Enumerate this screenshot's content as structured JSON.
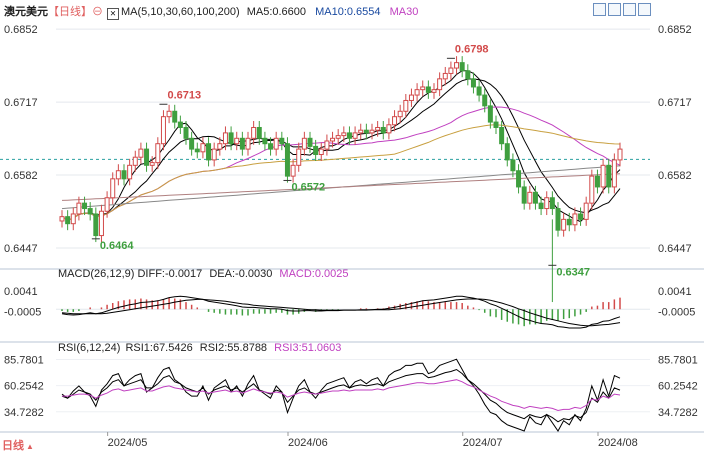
{
  "header": {
    "symbol": "澳元美元",
    "period_tag": "【日线】",
    "ma_label": "MA(5,10,30,60,100,200)",
    "ma5_label": "MA5:0.6600",
    "ma10_label": "MA10:0.6554",
    "ma30_label": "MA30"
  },
  "macd_header": {
    "params": "MACD(26,12,9)",
    "diff": "DIFF:-0.0017",
    "dea": "DEA:-0.0030",
    "macd": "MACD:0.0025"
  },
  "rsi_header": {
    "params": "RSI(6,12,24)",
    "rsi1": "RSI1:67.5426",
    "rsi2": "RSI2:55.8788",
    "rsi3": "RSI3:51.0603"
  },
  "footer": {
    "period_button": "日线",
    "dates": [
      "2024/05",
      "2024/06",
      "2024/07",
      "2024/08"
    ]
  },
  "colors": {
    "up": "#d24a4a",
    "down": "#3f9f3f",
    "ma5": "#000000",
    "ma10": "#000000",
    "ma30": "#c040c0",
    "ma60": "#c8a040",
    "ma100": "#888888",
    "ma200": "#b08080",
    "rsi1": "#000000",
    "rsi2": "#000000",
    "rsi3": "#c040c0",
    "label_red": "#d24a4a",
    "label_green": "#3f9f3f",
    "header_blue": "#1a4aa0"
  },
  "chart_data": [
    {
      "type": "candlestick",
      "title": "澳元美元",
      "ylim": [
        0.641,
        0.688
      ],
      "y_ticks": [
        "0.6852",
        "0.6717",
        "0.6582",
        "0.6447"
      ],
      "reference_line": 0.6611,
      "annotations": [
        {
          "text": "0.6713",
          "value": 0.6713,
          "kind": "high"
        },
        {
          "text": "0.6464",
          "value": 0.6464,
          "kind": "low"
        },
        {
          "text": "0.6572",
          "value": 0.6572,
          "kind": "low"
        },
        {
          "text": "0.6798",
          "value": 0.6798,
          "kind": "high"
        },
        {
          "text": "0.6347",
          "value": 0.6347,
          "kind": "low"
        }
      ],
      "close": [
        0.6505,
        0.6492,
        0.651,
        0.653,
        0.652,
        0.651,
        0.647,
        0.6515,
        0.654,
        0.6575,
        0.659,
        0.6575,
        0.66,
        0.6615,
        0.663,
        0.66,
        0.6605,
        0.664,
        0.669,
        0.67,
        0.668,
        0.667,
        0.665,
        0.663,
        0.6625,
        0.664,
        0.661,
        0.663,
        0.664,
        0.666,
        0.664,
        0.665,
        0.663,
        0.665,
        0.667,
        0.665,
        0.664,
        0.663,
        0.665,
        0.664,
        0.658,
        0.66,
        0.663,
        0.665,
        0.6635,
        0.662,
        0.663,
        0.6645,
        0.665,
        0.6655,
        0.666,
        0.665,
        0.666,
        0.6665,
        0.666,
        0.6665,
        0.667,
        0.666,
        0.6675,
        0.669,
        0.67,
        0.672,
        0.673,
        0.674,
        0.6745,
        0.6735,
        0.674,
        0.676,
        0.677,
        0.678,
        0.679,
        0.6775,
        0.676,
        0.6745,
        0.673,
        0.671,
        0.668,
        0.667,
        0.664,
        0.661,
        0.659,
        0.656,
        0.653,
        0.655,
        0.653,
        0.652,
        0.654,
        0.652,
        0.648,
        0.65,
        0.649,
        0.651,
        0.65,
        0.653,
        0.658,
        0.656,
        0.66,
        0.656,
        0.661,
        0.663
      ],
      "ma_values": {
        "MA5": 0.66,
        "MA10": 0.6554
      }
    },
    {
      "type": "macd",
      "y_ticks": [
        "0.0041",
        "-0.0005"
      ],
      "ylim": [
        -0.006,
        0.007
      ],
      "diff": [
        -0.001,
        -0.0012,
        -0.0013,
        -0.0012,
        -0.001,
        -0.0008,
        -0.001,
        -0.0008,
        -0.0004,
        0.0,
        0.0004,
        0.0007,
        0.001,
        0.0012,
        0.0015,
        0.0016,
        0.0017,
        0.0019,
        0.0022,
        0.0026,
        0.0028,
        0.0029,
        0.0028,
        0.0026,
        0.0024,
        0.0022,
        0.0018,
        0.0016,
        0.0014,
        0.0012,
        0.001,
        0.0008,
        0.0005,
        0.0004,
        0.0004,
        0.0003,
        0.0002,
        0.0001,
        0.0001,
        0.0,
        -0.0003,
        -0.0004,
        -0.0004,
        -0.0003,
        -0.0003,
        -0.0004,
        -0.0004,
        -0.0003,
        -0.0003,
        -0.0003,
        -0.0002,
        -0.0002,
        -0.0002,
        -0.0001,
        -0.0001,
        -0.0001,
        0.0,
        0.0,
        0.0002,
        0.0004,
        0.0007,
        0.001,
        0.0013,
        0.0016,
        0.0019,
        0.002,
        0.0021,
        0.0023,
        0.0025,
        0.0027,
        0.0029,
        0.0029,
        0.0027,
        0.0025,
        0.0022,
        0.0018,
        0.0012,
        0.0008,
        0.0002,
        -0.0004,
        -0.001,
        -0.0016,
        -0.0022,
        -0.0025,
        -0.0029,
        -0.0032,
        -0.0033,
        -0.0035,
        -0.0039,
        -0.004,
        -0.0042,
        -0.0042,
        -0.0042,
        -0.004,
        -0.0034,
        -0.0032,
        -0.0027,
        -0.0026,
        -0.0021,
        -0.0017
      ],
      "dea": [
        -0.0008,
        -0.0009,
        -0.001,
        -0.001,
        -0.001,
        -0.001,
        -0.001,
        -0.001,
        -0.0009,
        -0.0007,
        -0.0005,
        -0.0003,
        -0.0001,
        0.0001,
        0.0003,
        0.0005,
        0.0007,
        0.0009,
        0.0011,
        0.0013,
        0.0016,
        0.0018,
        0.002,
        0.0021,
        0.0022,
        0.0022,
        0.0021,
        0.002,
        0.0019,
        0.0018,
        0.0016,
        0.0014,
        0.0012,
        0.0011,
        0.0009,
        0.0008,
        0.0007,
        0.0006,
        0.0005,
        0.0004,
        0.0003,
        0.0002,
        0.0001,
        0.0,
        -0.0001,
        -0.0001,
        -0.0002,
        -0.0002,
        -0.0002,
        -0.0002,
        -0.0002,
        -0.0002,
        -0.0002,
        -0.0002,
        -0.0002,
        -0.0001,
        -0.0001,
        -0.0001,
        -0.0001,
        0.0,
        0.0001,
        0.0003,
        0.0005,
        0.0007,
        0.0009,
        0.0011,
        0.0013,
        0.0015,
        0.0017,
        0.0019,
        0.0021,
        0.0022,
        0.0023,
        0.0023,
        0.0023,
        0.0022,
        0.002,
        0.0017,
        0.0014,
        0.001,
        0.0006,
        0.0001,
        -0.0003,
        -0.0008,
        -0.0012,
        -0.0016,
        -0.002,
        -0.0023,
        -0.0026,
        -0.0029,
        -0.0032,
        -0.0034,
        -0.0036,
        -0.0037,
        -0.0037,
        -0.0036,
        -0.0035,
        -0.0034,
        -0.0032,
        -0.003
      ]
    },
    {
      "type": "line",
      "title": "RSI",
      "y_ticks": [
        "85.7801",
        "60.2542",
        "34.7282"
      ],
      "ylim": [
        15,
        95
      ],
      "series": [
        {
          "name": "RSI1",
          "values": [
            52,
            48,
            55,
            60,
            54,
            50,
            40,
            56,
            62,
            70,
            72,
            60,
            66,
            70,
            72,
            54,
            58,
            68,
            76,
            78,
            66,
            62,
            54,
            50,
            50,
            60,
            46,
            58,
            62,
            66,
            54,
            60,
            50,
            62,
            70,
            56,
            52,
            48,
            60,
            54,
            34,
            48,
            60,
            66,
            54,
            48,
            56,
            62,
            64,
            66,
            68,
            58,
            64,
            66,
            62,
            66,
            68,
            60,
            70,
            74,
            76,
            80,
            80,
            82,
            82,
            72,
            74,
            80,
            82,
            84,
            86,
            76,
            66,
            60,
            52,
            42,
            34,
            32,
            26,
            22,
            20,
            18,
            16,
            30,
            24,
            22,
            32,
            24,
            16,
            26,
            22,
            32,
            26,
            38,
            60,
            46,
            66,
            50,
            70,
            67.5
          ]
        },
        {
          "name": "RSI2",
          "values": [
            50,
            48,
            52,
            56,
            54,
            52,
            46,
            54,
            58,
            64,
            66,
            60,
            62,
            64,
            66,
            58,
            58,
            62,
            68,
            70,
            64,
            62,
            58,
            56,
            54,
            58,
            52,
            56,
            58,
            60,
            56,
            58,
            54,
            58,
            62,
            56,
            54,
            52,
            56,
            54,
            44,
            50,
            56,
            58,
            54,
            52,
            54,
            56,
            58,
            60,
            61,
            58,
            60,
            61,
            60,
            61,
            62,
            60,
            64,
            66,
            68,
            70,
            71,
            72,
            72,
            68,
            69,
            71,
            73,
            74,
            76,
            72,
            66,
            62,
            57,
            52,
            46,
            43,
            38,
            34,
            32,
            30,
            28,
            32,
            30,
            29,
            32,
            29,
            25,
            28,
            27,
            31,
            29,
            34,
            48,
            44,
            54,
            48,
            58,
            55.9
          ]
        },
        {
          "name": "RSI3",
          "values": [
            50,
            50,
            51,
            52,
            52,
            51,
            48,
            51,
            53,
            56,
            57,
            55,
            56,
            57,
            58,
            55,
            55,
            57,
            59,
            60,
            58,
            57,
            56,
            55,
            54,
            55,
            53,
            54,
            55,
            56,
            54,
            55,
            53,
            55,
            57,
            55,
            54,
            53,
            54,
            53,
            49,
            51,
            53,
            54,
            53,
            52,
            53,
            54,
            55,
            55,
            56,
            55,
            56,
            56,
            56,
            56,
            57,
            56,
            58,
            59,
            60,
            61,
            62,
            63,
            63,
            62,
            62,
            63,
            64,
            65,
            66,
            64,
            61,
            59,
            56,
            53,
            50,
            48,
            45,
            43,
            41,
            40,
            38,
            40,
            39,
            38,
            39,
            38,
            36,
            37,
            37,
            39,
            38,
            41,
            47,
            46,
            50,
            48,
            52,
            51.1
          ]
        }
      ]
    }
  ]
}
